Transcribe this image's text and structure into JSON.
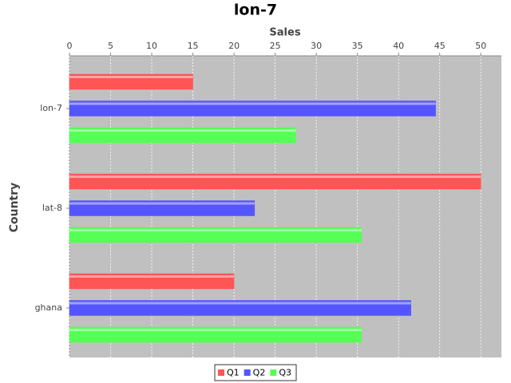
{
  "chart_data": {
    "type": "hbar",
    "title": "lon-7",
    "x_label": "Sales",
    "y_label": "Country",
    "categories": [
      "lon-7",
      "lat-8",
      "ghana"
    ],
    "series": [
      {
        "name": "Q1",
        "color": "#ff5555",
        "values": [
          15,
          50,
          20
        ]
      },
      {
        "name": "Q2",
        "color": "#5555ff",
        "values": [
          44.5,
          22.5,
          41.5
        ]
      },
      {
        "name": "Q3",
        "color": "#55ff55",
        "values": [
          27.5,
          35.5,
          35.5
        ]
      }
    ],
    "xlim": [
      0,
      52.5
    ],
    "xticks": [
      0,
      5,
      10,
      15,
      20,
      25,
      30,
      35,
      40,
      45,
      50
    ],
    "grid": true,
    "legend": "bottom"
  }
}
